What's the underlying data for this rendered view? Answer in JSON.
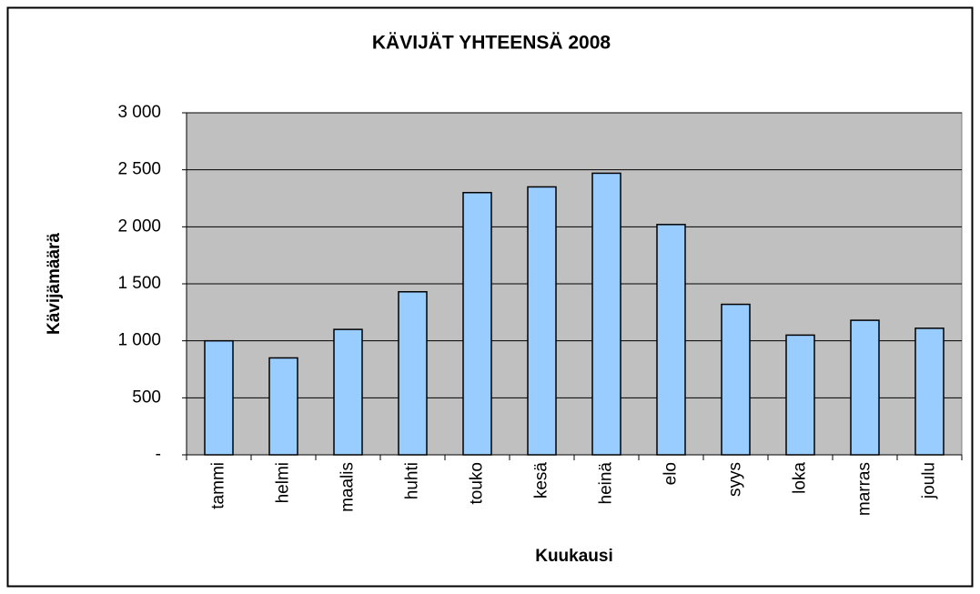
{
  "chart_data": {
    "type": "bar",
    "title": "KÄVIJÄT YHTEENSÄ 2008",
    "x_label": "Kuukausi",
    "y_label": "Kävijämäärä",
    "categories": [
      "tammi",
      "helmi",
      "maalis",
      "huhti",
      "touko",
      "kesä",
      "heinä",
      "elo",
      "syys",
      "loka",
      "marras",
      "joulu"
    ],
    "values": [
      1000,
      850,
      1100,
      1430,
      2300,
      2350,
      2470,
      2020,
      1320,
      1050,
      1180,
      1110
    ],
    "color": "#99ccff",
    "ylim": [
      0,
      3000
    ],
    "yticks": [
      {
        "value": 0,
        "label": "-"
      },
      500,
      {
        "value": 1000,
        "label": "1 000"
      },
      {
        "value": 1500,
        "label": "1 500"
      },
      {
        "value": 2000,
        "label": "2 000"
      },
      {
        "value": 2500,
        "label": "2 500"
      },
      {
        "value": 3000,
        "label": "3 000"
      }
    ],
    "grid": true
  }
}
